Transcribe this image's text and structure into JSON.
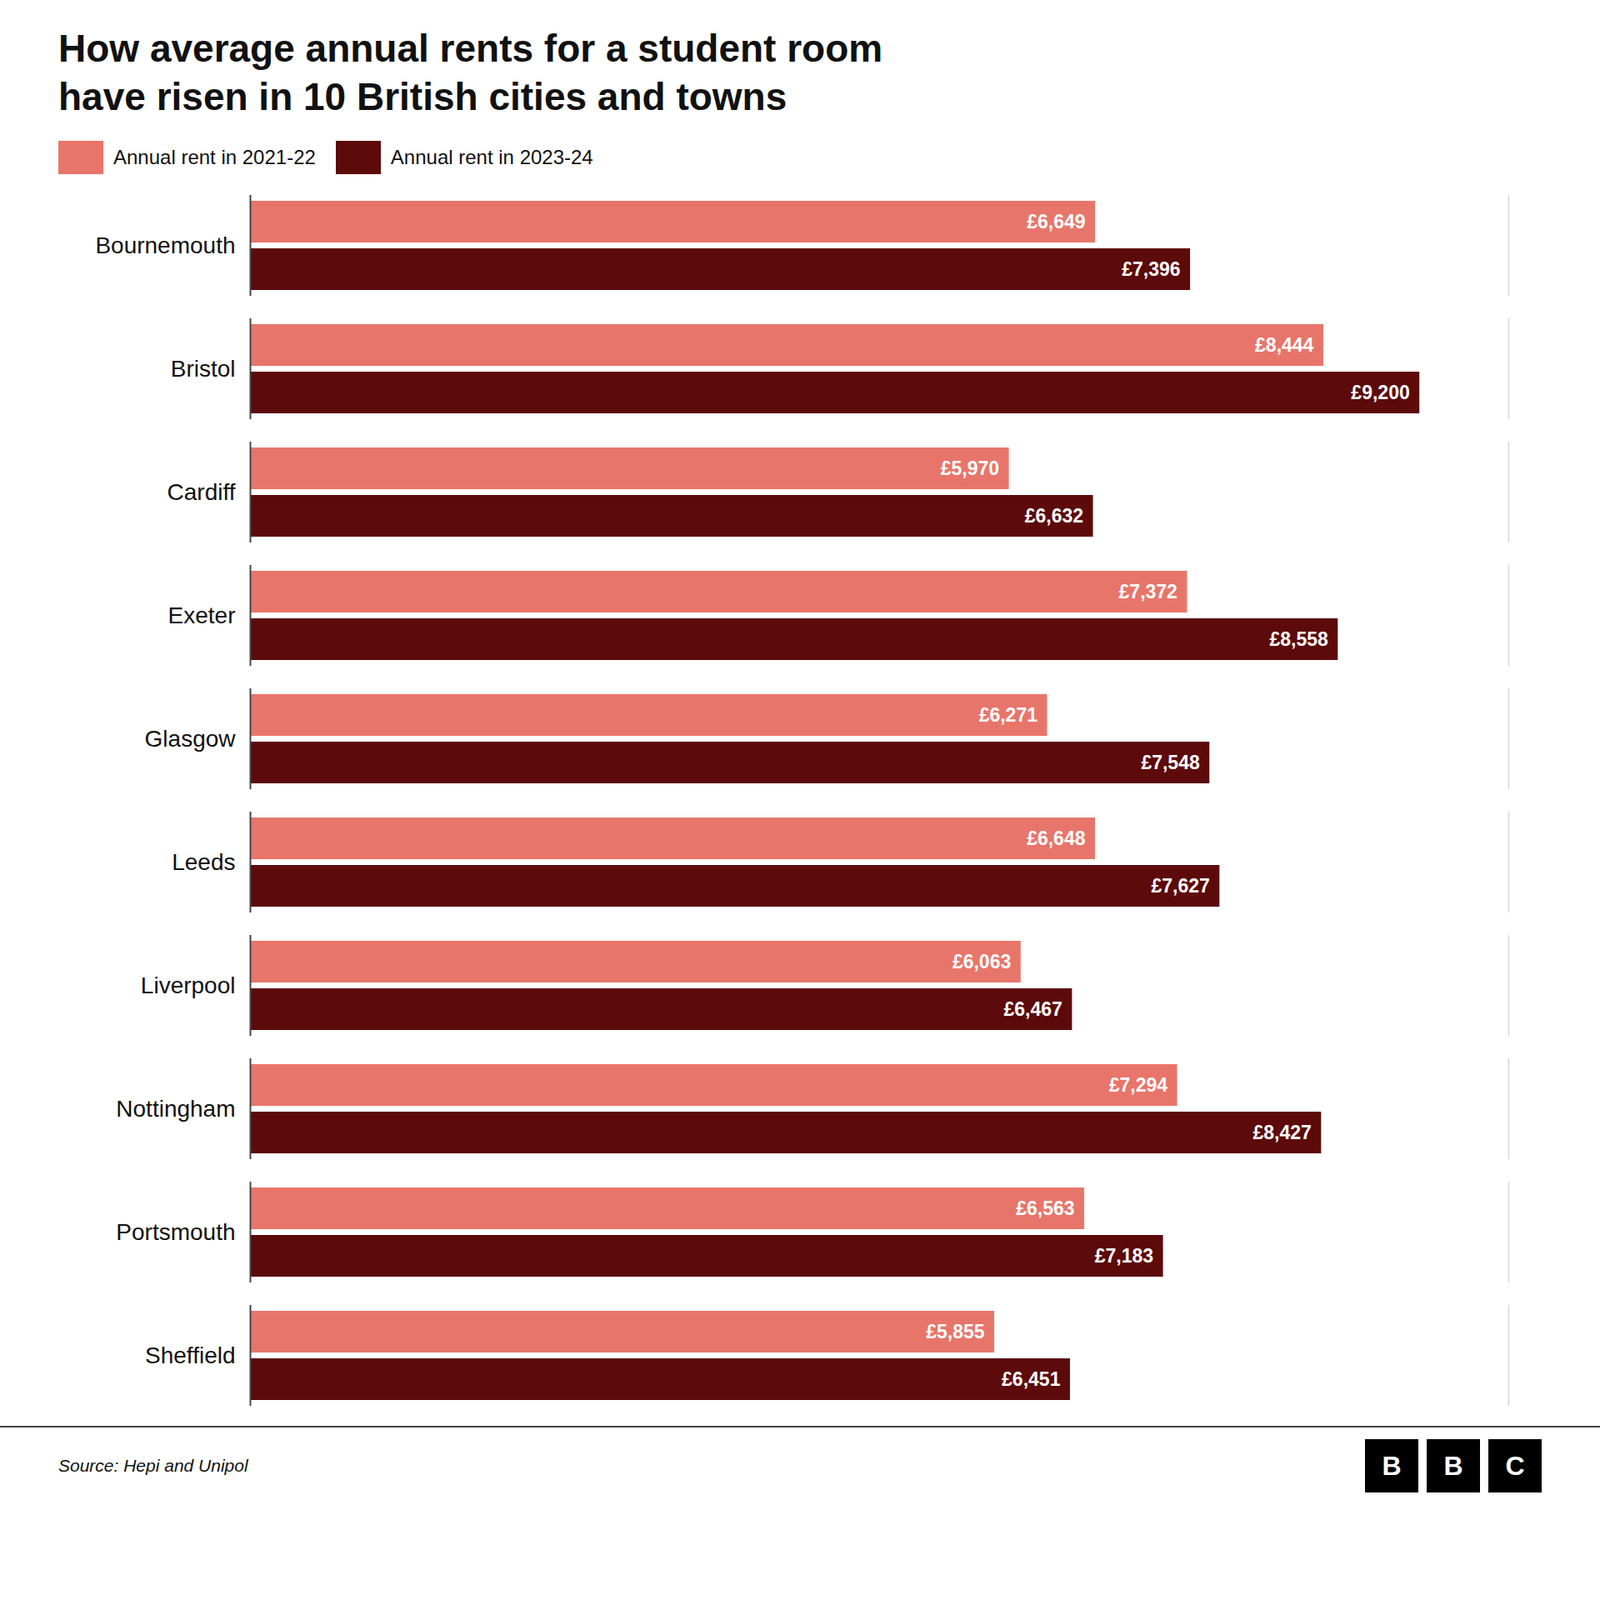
{
  "chart_data": {
    "type": "bar",
    "orientation": "horizontal",
    "title": "How average annual rents for a student room\nhave risen in 10 British cities and towns",
    "caption": "Source: Hepi and Unipol",
    "logo_text": [
      "B",
      "B",
      "C"
    ],
    "categories": [
      "Bournemouth",
      "Bristol",
      "Cardiff",
      "Exeter",
      "Glasgow",
      "Leeds",
      "Liverpool",
      "Nottingham",
      "Portsmouth",
      "Sheffield"
    ],
    "series": [
      {
        "name": "Annual rent in 2021-22",
        "color": "#e8756a",
        "values": [
          6649,
          8444,
          5970,
          7372,
          6271,
          6648,
          6063,
          7294,
          6563,
          5855
        ],
        "value_labels": [
          "£6,649",
          "£8,444",
          "£5,970",
          "£7,372",
          "£6,271",
          "£6,648",
          "£6,063",
          "£7,294",
          "£6,563",
          "£5,855"
        ]
      },
      {
        "name": "Annual rent in 2023-24",
        "color": "#5c0a0a",
        "values": [
          7396,
          9200,
          6632,
          8558,
          7548,
          7627,
          6467,
          8427,
          7183,
          6451
        ],
        "value_labels": [
          "£7,396",
          "£9,200",
          "£6,632",
          "£8,558",
          "£7,548",
          "£7,627",
          "£6,467",
          "£8,427",
          "£7,183",
          "£6,451"
        ]
      }
    ],
    "xlim": [
      0,
      9900
    ],
    "grid": false,
    "legend": "top",
    "data_labels": true,
    "tick_labels": "y"
  }
}
